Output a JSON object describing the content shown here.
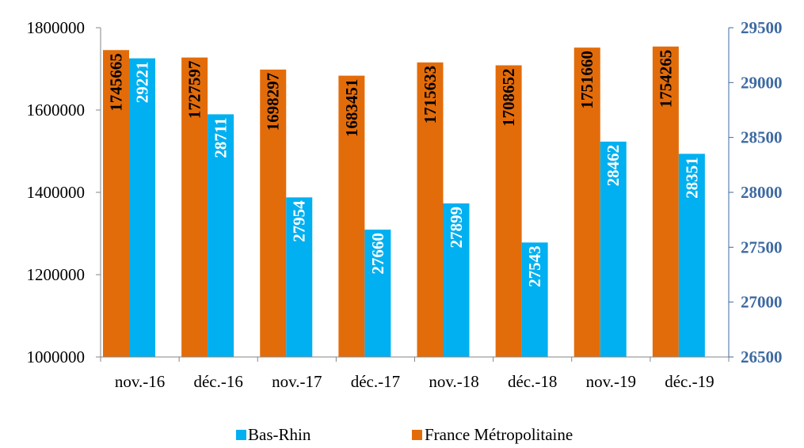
{
  "chart_data": {
    "type": "bar",
    "categories": [
      "nov.-16",
      "déc.-16",
      "nov.-17",
      "déc.-17",
      "nov.-18",
      "déc.-18",
      "nov.-19",
      "déc.-19"
    ],
    "series": [
      {
        "name": "France Métropolitaine",
        "axis": "left",
        "color": "#e36c0a",
        "label_color": "#000000",
        "values": [
          1745665,
          1727597,
          1698297,
          1683451,
          1715633,
          1708652,
          1751660,
          1754265
        ]
      },
      {
        "name": "Bas-Rhin",
        "axis": "right",
        "color": "#00b0f0",
        "label_color": "#ffffff",
        "values": [
          29221,
          28711,
          27954,
          27660,
          27899,
          27543,
          28462,
          28351
        ]
      }
    ],
    "y_left": {
      "ylim": [
        1000000,
        1800000
      ],
      "ticks": [
        "1000000",
        "1200000",
        "1400000",
        "1600000",
        "1800000"
      ]
    },
    "y_right": {
      "ylim": [
        26500,
        29500
      ],
      "ticks": [
        "26500",
        "27000",
        "27500",
        "28000",
        "28500",
        "29000",
        "29500"
      ],
      "color": "#3e6aa1"
    },
    "grid": false,
    "legend": {
      "placement": "bottom",
      "items": [
        {
          "label": "Bas-Rhin",
          "color": "#00b0f0"
        },
        {
          "label": "France Métropolitaine",
          "color": "#e36c0a"
        }
      ]
    }
  }
}
